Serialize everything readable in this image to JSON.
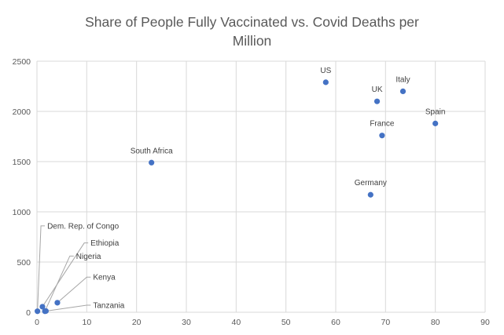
{
  "chart_data": {
    "type": "scatter",
    "title_line1": "Share of People Fully Vaccinated vs. Covid Deaths per",
    "title_line2": "Million",
    "xlabel": "",
    "ylabel": "",
    "xlim": [
      0,
      90
    ],
    "ylim": [
      0,
      2500
    ],
    "xticks": [
      0,
      10,
      20,
      30,
      40,
      50,
      60,
      70,
      80,
      90
    ],
    "yticks": [
      0,
      500,
      1000,
      1500,
      2000,
      2500
    ],
    "grid": true,
    "marker_color": "#4472C4",
    "points": [
      {
        "label": "US",
        "x": 58,
        "y": 2290,
        "pos": "above"
      },
      {
        "label": "UK",
        "x": 68.3,
        "y": 2100,
        "pos": "above"
      },
      {
        "label": "Italy",
        "x": 73.5,
        "y": 2200,
        "pos": "above"
      },
      {
        "label": "Spain",
        "x": 80,
        "y": 1880,
        "pos": "above"
      },
      {
        "label": "France",
        "x": 69.3,
        "y": 1760,
        "pos": "above"
      },
      {
        "label": "Germany",
        "x": 67,
        "y": 1170,
        "pos": "above"
      },
      {
        "label": "South Africa",
        "x": 23,
        "y": 1490,
        "pos": "above"
      },
      {
        "label": "Kenya",
        "x": 4.1,
        "y": 95,
        "pos": "leader",
        "lx": 10,
        "ly": 350
      },
      {
        "label": "Dem. Rep. of Congo",
        "x": 0.1,
        "y": 10,
        "pos": "leader",
        "lx": 0.8,
        "ly": 860
      },
      {
        "label": "Ethiopia",
        "x": 1.1,
        "y": 55,
        "pos": "leader",
        "lx": 9.5,
        "ly": 690
      },
      {
        "label": "Nigeria",
        "x": 1.6,
        "y": 10,
        "pos": "leader",
        "lx": 6.6,
        "ly": 560
      },
      {
        "label": "Tanzania",
        "x": 1.8,
        "y": 12,
        "pos": "leader",
        "lx": 10,
        "ly": 70
      }
    ]
  }
}
